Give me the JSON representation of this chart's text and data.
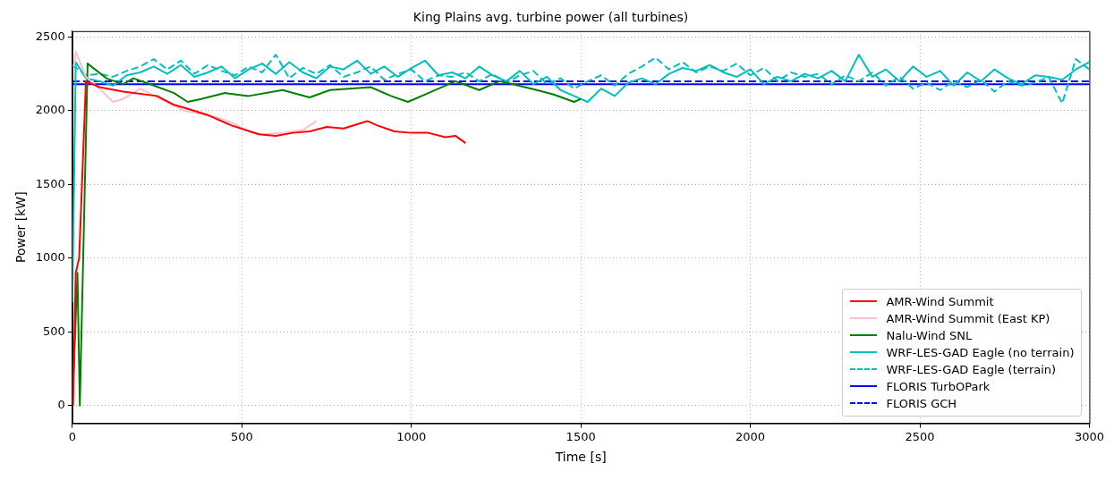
{
  "chart_data": {
    "type": "line",
    "title": "King Plains avg. turbine power (all turbines)",
    "xlabel": "Time [s]",
    "ylabel": "Power [kW]",
    "xlim": [
      0,
      3000
    ],
    "xticks": [
      0,
      500,
      1000,
      1500,
      2000,
      2500,
      3000
    ],
    "ylim": [
      -120,
      2540
    ],
    "yticks": [
      0,
      500,
      1000,
      1500,
      2000,
      2500
    ],
    "grid": true,
    "legend": "bottom right",
    "marker": "none",
    "series": [
      {
        "name": "AMR-Wind Summit",
        "color": "#ff0000",
        "line_style": "solid",
        "x": [
          2,
          10,
          20,
          40,
          80,
          150,
          250,
          300,
          330,
          400,
          470,
          550,
          600,
          650,
          700,
          750,
          800,
          870,
          900,
          950,
          1000,
          1050,
          1100,
          1130,
          1160
        ],
        "values": [
          0,
          900,
          1000,
          2200,
          2160,
          2130,
          2100,
          2040,
          2020,
          1970,
          1900,
          1840,
          1830,
          1850,
          1860,
          1890,
          1880,
          1930,
          1900,
          1860,
          1850,
          1850,
          1820,
          1830,
          1780
        ]
      },
      {
        "name": "AMR-Wind Summit (East KP)",
        "color": "#ffc0cb",
        "line_style": "solid",
        "x": [
          5,
          10,
          40,
          80,
          120,
          150,
          200,
          260,
          330,
          420,
          470,
          520,
          560,
          620,
          680,
          720
        ],
        "values": [
          2300,
          2400,
          2230,
          2150,
          2060,
          2080,
          2150,
          2080,
          2000,
          1960,
          1920,
          1860,
          1840,
          1850,
          1870,
          1930
        ]
      },
      {
        "name": "Nalu-Wind SNL",
        "color": "#008000",
        "line_style": "solid",
        "x": [
          0,
          15,
          22,
          45,
          100,
          150,
          180,
          230,
          300,
          340,
          380,
          450,
          520,
          620,
          700,
          760,
          880,
          940,
          990,
          1050,
          1130,
          1200,
          1260,
          1300,
          1370,
          1420,
          1480,
          1500
        ],
        "values": [
          0,
          900,
          0,
          2320,
          2220,
          2180,
          2220,
          2180,
          2120,
          2060,
          2080,
          2120,
          2100,
          2140,
          2090,
          2140,
          2160,
          2100,
          2060,
          2120,
          2200,
          2140,
          2200,
          2180,
          2140,
          2110,
          2060,
          2080
        ]
      },
      {
        "name": "WRF-LES-GAD Eagle (no terrain)",
        "color": "#00bfbf",
        "line_style": "solid",
        "x": [
          0,
          10,
          40,
          80,
          120,
          160,
          200,
          240,
          280,
          320,
          360,
          400,
          440,
          480,
          520,
          560,
          600,
          640,
          680,
          720,
          760,
          800,
          840,
          880,
          920,
          960,
          1000,
          1040,
          1080,
          1120,
          1160,
          1200,
          1240,
          1280,
          1320,
          1360,
          1400,
          1440,
          1480,
          1520,
          1560,
          1600,
          1640,
          1680,
          1720,
          1760,
          1800,
          1840,
          1880,
          1920,
          1960,
          2000,
          2040,
          2080,
          2120,
          2160,
          2200,
          2240,
          2280,
          2320,
          2360,
          2400,
          2440,
          2480,
          2520,
          2560,
          2600,
          2640,
          2680,
          2720,
          2760,
          2800,
          2840,
          2880,
          2920,
          2960,
          3000
        ],
        "values": [
          700,
          2330,
          2220,
          2200,
          2170,
          2240,
          2260,
          2300,
          2250,
          2310,
          2230,
          2260,
          2300,
          2220,
          2280,
          2320,
          2250,
          2330,
          2260,
          2220,
          2300,
          2280,
          2340,
          2250,
          2300,
          2230,
          2290,
          2340,
          2240,
          2260,
          2220,
          2300,
          2240,
          2200,
          2270,
          2180,
          2230,
          2140,
          2100,
          2060,
          2150,
          2100,
          2190,
          2220,
          2180,
          2250,
          2290,
          2270,
          2310,
          2260,
          2230,
          2280,
          2180,
          2230,
          2200,
          2250,
          2220,
          2270,
          2200,
          2380,
          2230,
          2280,
          2200,
          2300,
          2230,
          2270,
          2170,
          2260,
          2200,
          2280,
          2220,
          2180,
          2240,
          2230,
          2210,
          2280,
          2330
        ]
      },
      {
        "name": "WRF-LES-GAD Eagle (terrain)",
        "color": "#00bfbf",
        "line_style": "dashed",
        "x": [
          0,
          40,
          80,
          120,
          160,
          200,
          240,
          280,
          320,
          360,
          400,
          440,
          480,
          520,
          560,
          600,
          640,
          680,
          720,
          760,
          800,
          840,
          880,
          920,
          960,
          1000,
          1040,
          1080,
          1120,
          1160,
          1200,
          1240,
          1280,
          1320,
          1360,
          1400,
          1440,
          1480,
          1520,
          1560,
          1600,
          1640,
          1680,
          1720,
          1760,
          1800,
          1840,
          1880,
          1920,
          1960,
          2000,
          2040,
          2080,
          2120,
          2160,
          2200,
          2240,
          2280,
          2320,
          2360,
          2400,
          2440,
          2480,
          2520,
          2560,
          2600,
          2640,
          2680,
          2720,
          2760,
          2800,
          2840,
          2880,
          2920,
          2960,
          3000
        ],
        "values": [
          2310,
          2240,
          2250,
          2230,
          2270,
          2300,
          2350,
          2280,
          2340,
          2250,
          2310,
          2270,
          2240,
          2300,
          2260,
          2380,
          2220,
          2290,
          2250,
          2310,
          2230,
          2260,
          2300,
          2210,
          2250,
          2280,
          2200,
          2240,
          2230,
          2260,
          2200,
          2250,
          2190,
          2240,
          2270,
          2180,
          2220,
          2150,
          2200,
          2240,
          2170,
          2250,
          2300,
          2360,
          2280,
          2330,
          2260,
          2300,
          2270,
          2320,
          2240,
          2290,
          2200,
          2260,
          2230,
          2250,
          2180,
          2240,
          2200,
          2260,
          2170,
          2230,
          2150,
          2190,
          2140,
          2200,
          2160,
          2210,
          2130,
          2200,
          2170,
          2190,
          2230,
          2050,
          2350,
          2280
        ]
      },
      {
        "name": "FLORIS TurbOPark",
        "color": "#0000ff",
        "line_style": "solid",
        "x": [
          0,
          3000
        ],
        "values": [
          2180,
          2180
        ]
      },
      {
        "name": "FLORIS GCH",
        "color": "#0000ff",
        "line_style": "dashed",
        "x": [
          0,
          3000
        ],
        "values": [
          2200,
          2200
        ]
      }
    ]
  }
}
